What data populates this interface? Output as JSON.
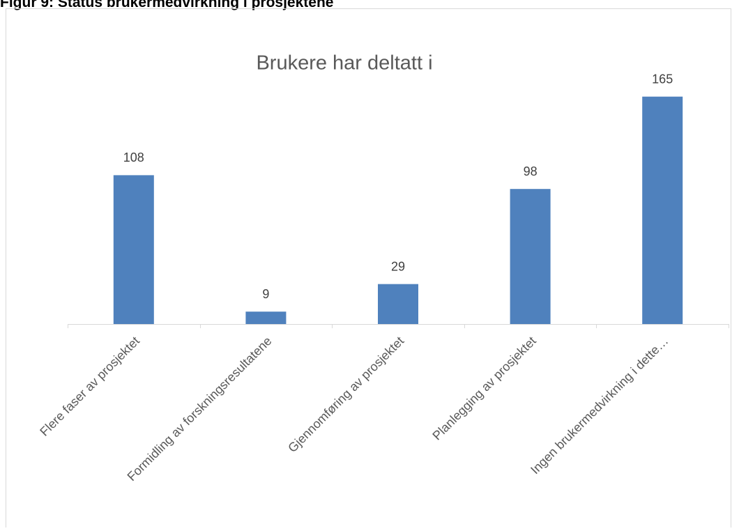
{
  "heading": "Figur 9: Status brukermedvirkning i prosjektene",
  "chart_data": {
    "type": "bar",
    "title": "Brukere har deltatt i",
    "categories": [
      "Flere faser av prosjektet",
      "Formidling av forskningsresultatene",
      "Gjennomføring av prosjektet",
      "Planlegging av prosjektet",
      "Ingen brukermedvirkning i dette…"
    ],
    "values": [
      108,
      9,
      29,
      98,
      165
    ],
    "color": "#4f81bd",
    "ylim": [
      0,
      180
    ]
  }
}
